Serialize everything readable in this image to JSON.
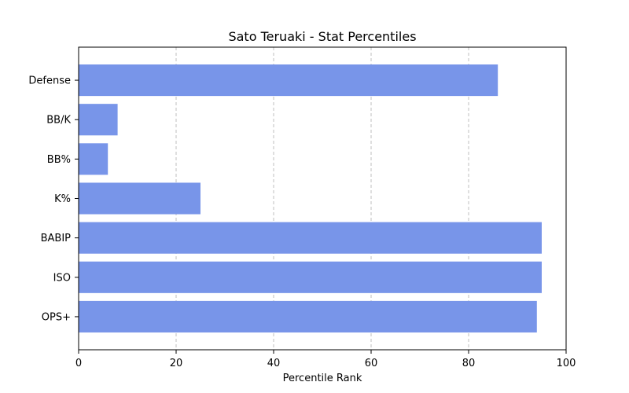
{
  "chart_data": {
    "type": "bar",
    "orientation": "horizontal",
    "title": "Sato Teruaki - Stat Percentiles",
    "xlabel": "Percentile Rank",
    "ylabel": "",
    "xlim": [
      0,
      100
    ],
    "xticks": [
      "0",
      "20",
      "40",
      "60",
      "80",
      "100"
    ],
    "categories": [
      "Defense",
      "BB/K",
      "BB%",
      "K%",
      "BABIP",
      "ISO",
      "OPS+"
    ],
    "values": [
      86,
      8,
      6,
      25,
      95,
      95,
      94
    ],
    "bar_color": "#7895e9",
    "grid": "x-dashed"
  }
}
